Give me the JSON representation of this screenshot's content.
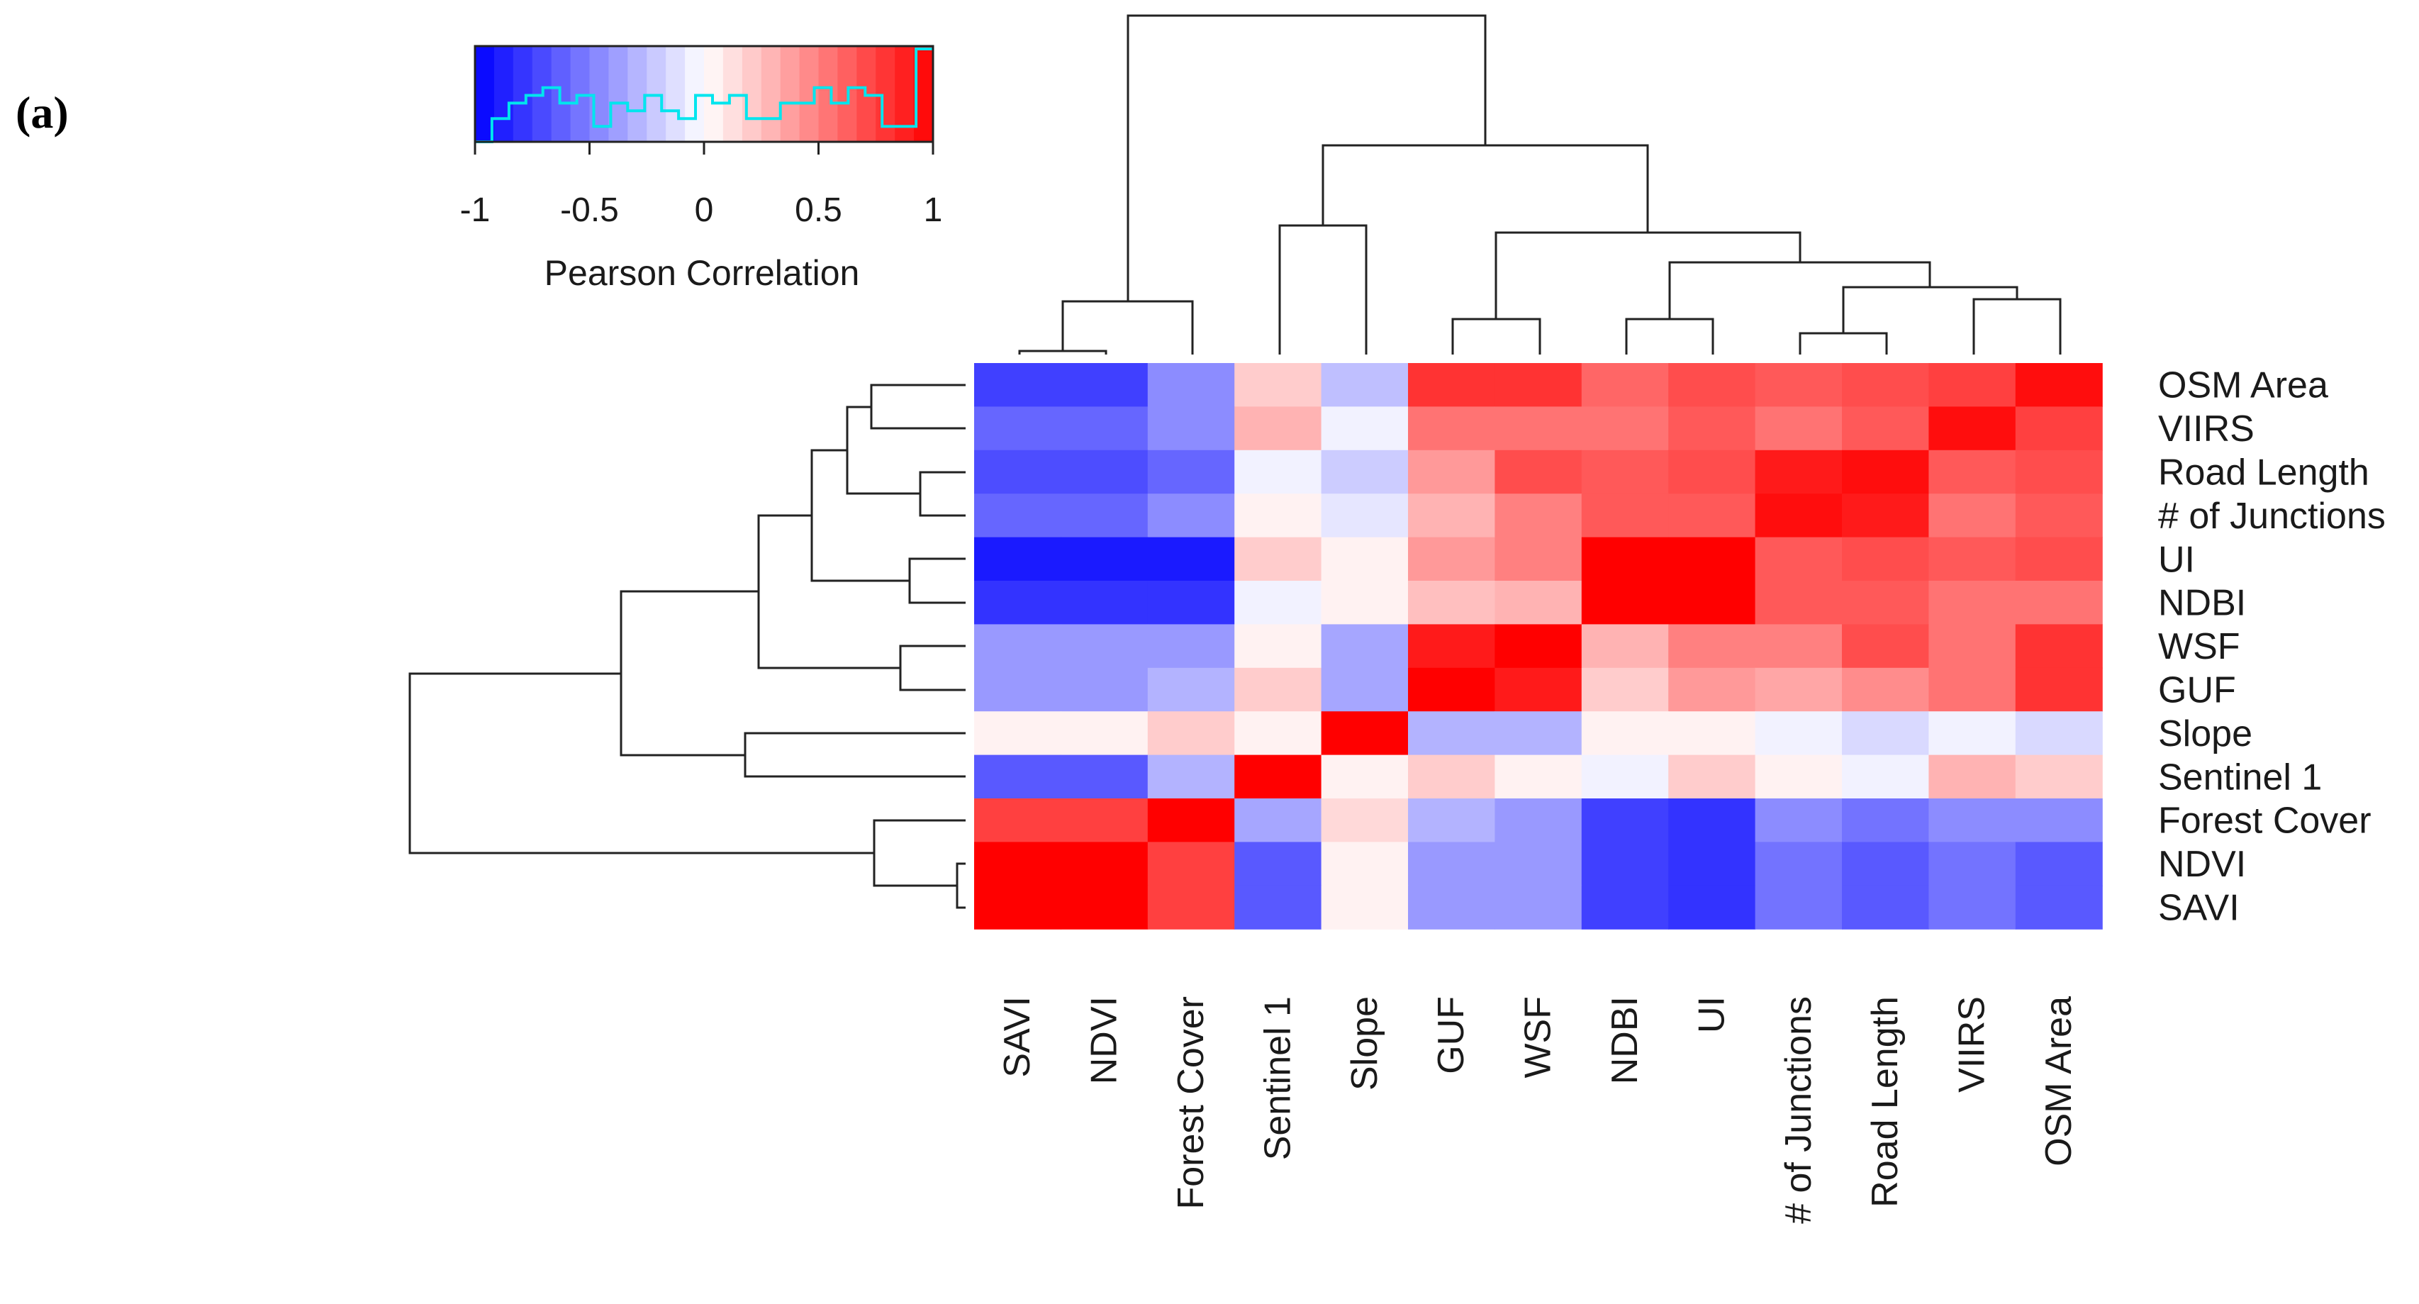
{
  "panel_label": "(a)",
  "chart_data": {
    "type": "heatmap",
    "title": "",
    "col_labels": [
      "SAVI",
      "NDVI",
      "Forest Cover",
      "Sentinel 1",
      "Slope",
      "GUF",
      "WSF",
      "NDBI",
      "UI",
      "# of Junctions",
      "Road Length",
      "VIIRS",
      "OSM Area"
    ],
    "row_labels": [
      "OSM Area",
      "VIIRS",
      "Road Length",
      "# of Junctions",
      "UI",
      "NDBI",
      "WSF",
      "GUF",
      "Slope",
      "Sentinel 1",
      "Forest Cover",
      "NDVI",
      "SAVI"
    ],
    "values": [
      [
        -0.75,
        -0.75,
        -0.45,
        0.2,
        -0.25,
        0.8,
        0.8,
        0.6,
        0.7,
        0.65,
        0.7,
        0.75,
        0.95
      ],
      [
        -0.6,
        -0.6,
        -0.45,
        0.3,
        -0.05,
        0.55,
        0.55,
        0.55,
        0.65,
        0.55,
        0.65,
        0.95,
        0.75
      ],
      [
        -0.7,
        -0.7,
        -0.6,
        -0.05,
        -0.2,
        0.4,
        0.7,
        0.65,
        0.7,
        0.9,
        0.95,
        0.65,
        0.7
      ],
      [
        -0.6,
        -0.6,
        -0.45,
        0.05,
        -0.1,
        0.3,
        0.5,
        0.65,
        0.65,
        0.95,
        0.9,
        0.55,
        0.65
      ],
      [
        -0.9,
        -0.9,
        -0.9,
        0.2,
        0.05,
        0.4,
        0.5,
        1.0,
        1.0,
        0.65,
        0.7,
        0.65,
        0.7
      ],
      [
        -0.8,
        -0.8,
        -0.8,
        -0.05,
        0.05,
        0.25,
        0.3,
        1.0,
        1.0,
        0.65,
        0.65,
        0.55,
        0.55
      ],
      [
        -0.4,
        -0.4,
        -0.4,
        0.05,
        -0.35,
        0.9,
        1.0,
        0.3,
        0.5,
        0.5,
        0.7,
        0.55,
        0.8
      ],
      [
        -0.4,
        -0.4,
        -0.3,
        0.2,
        -0.35,
        1.0,
        0.9,
        0.2,
        0.4,
        0.35,
        0.45,
        0.55,
        0.8
      ],
      [
        0.05,
        0.05,
        0.2,
        0.05,
        1.0,
        -0.3,
        -0.3,
        0.05,
        0.05,
        -0.05,
        -0.15,
        -0.05,
        -0.15
      ],
      [
        -0.65,
        -0.65,
        -0.3,
        1.0,
        0.05,
        0.2,
        0.05,
        -0.05,
        0.2,
        0.05,
        -0.05,
        0.3,
        0.2
      ],
      [
        0.75,
        0.75,
        1.0,
        -0.35,
        0.15,
        -0.3,
        -0.4,
        -0.75,
        -0.8,
        -0.45,
        -0.55,
        -0.45,
        -0.45
      ],
      [
        1.0,
        1.0,
        0.75,
        -0.65,
        0.05,
        -0.4,
        -0.4,
        -0.75,
        -0.8,
        -0.55,
        -0.65,
        -0.55,
        -0.65
      ],
      [
        1.0,
        1.0,
        0.75,
        -0.65,
        0.05,
        -0.4,
        -0.4,
        -0.75,
        -0.8,
        -0.55,
        -0.65,
        -0.55,
        -0.65
      ]
    ],
    "color_key": {
      "title": "Pearson Correlation",
      "ticks": [
        "-1",
        "-0.5",
        "0",
        "0.5",
        "1"
      ],
      "range": [
        -1,
        1
      ],
      "low_color": "#0000ff",
      "mid_color": "#ffffff",
      "high_color": "#ff0000",
      "histogram_color": "#00e5ee",
      "histogram_counts": [
        0,
        3,
        5,
        6,
        7,
        5,
        6,
        2,
        5,
        4,
        6,
        4,
        3,
        6,
        5,
        6,
        3,
        3,
        5,
        5,
        7,
        5,
        7,
        6,
        2,
        2,
        12
      ]
    },
    "dendrogram_color": "#222222"
  }
}
